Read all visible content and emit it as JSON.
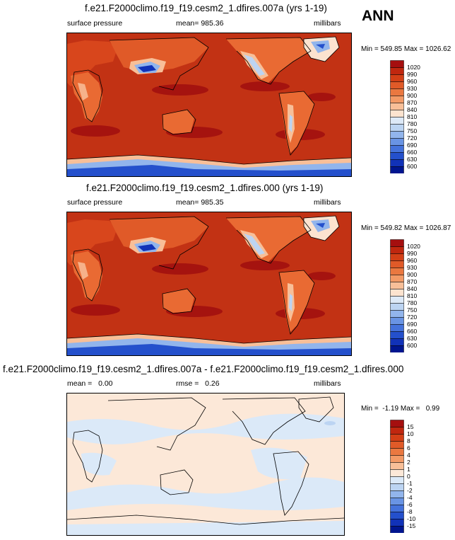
{
  "season": "ANN",
  "panels": [
    {
      "title": "f.e21.F2000climo.f19_f19.cesm2_1.dfires.007a (yrs 1-19)",
      "variable": "surface pressure",
      "stat_text": "mean= 985.36",
      "units": "millibars",
      "minmax": "Min = 549.85 Max = 1026.62"
    },
    {
      "title": "f.e21.F2000climo.f19_f19.cesm2_1.dfires.000 (yrs 1-19)",
      "variable": "surface pressure",
      "stat_text": "mean= 985.35",
      "units": "millibars",
      "minmax": "Min = 549.82 Max = 1026.87"
    },
    {
      "title": "f.e21.F2000climo.f19_f19.cesm2_1.dfires.007a - f.e21.F2000climo.f19_f19.cesm2_1.dfires.000",
      "mean_text": "mean =   0.00",
      "rmse_text": "rmse =   0.26",
      "units": "millibars",
      "minmax": "Min =  -1.19 Max =   0.99"
    }
  ],
  "colorbar_abs": {
    "labels": [
      "1020",
      "990",
      "960",
      "930",
      "900",
      "870",
      "840",
      "810",
      "780",
      "750",
      "720",
      "690",
      "660",
      "630",
      "600"
    ],
    "colors": [
      "#a50f0f",
      "#c0270f",
      "#d33f16",
      "#e05a28",
      "#ea7840",
      "#f39a66",
      "#f8bf98",
      "#fce3cf",
      "#dde9f7",
      "#bcd4f2",
      "#92b5ec",
      "#6994e4",
      "#4472db",
      "#2450cc",
      "#1132b8",
      "#00158f"
    ]
  },
  "colorbar_diff": {
    "labels": [
      "15",
      "10",
      "8",
      "6",
      "4",
      "2",
      "1",
      "0",
      "-1",
      "-2",
      "-4",
      "-6",
      "-8",
      "-10",
      "-15"
    ],
    "colors": [
      "#a50f0f",
      "#c0270f",
      "#d33f16",
      "#e05a28",
      "#ea7840",
      "#f39a66",
      "#f8bf98",
      "#fce8d8",
      "#dbe9f8",
      "#bcd4f2",
      "#92b5ec",
      "#6994e4",
      "#4472db",
      "#2450cc",
      "#1132b8",
      "#00158f"
    ]
  }
}
